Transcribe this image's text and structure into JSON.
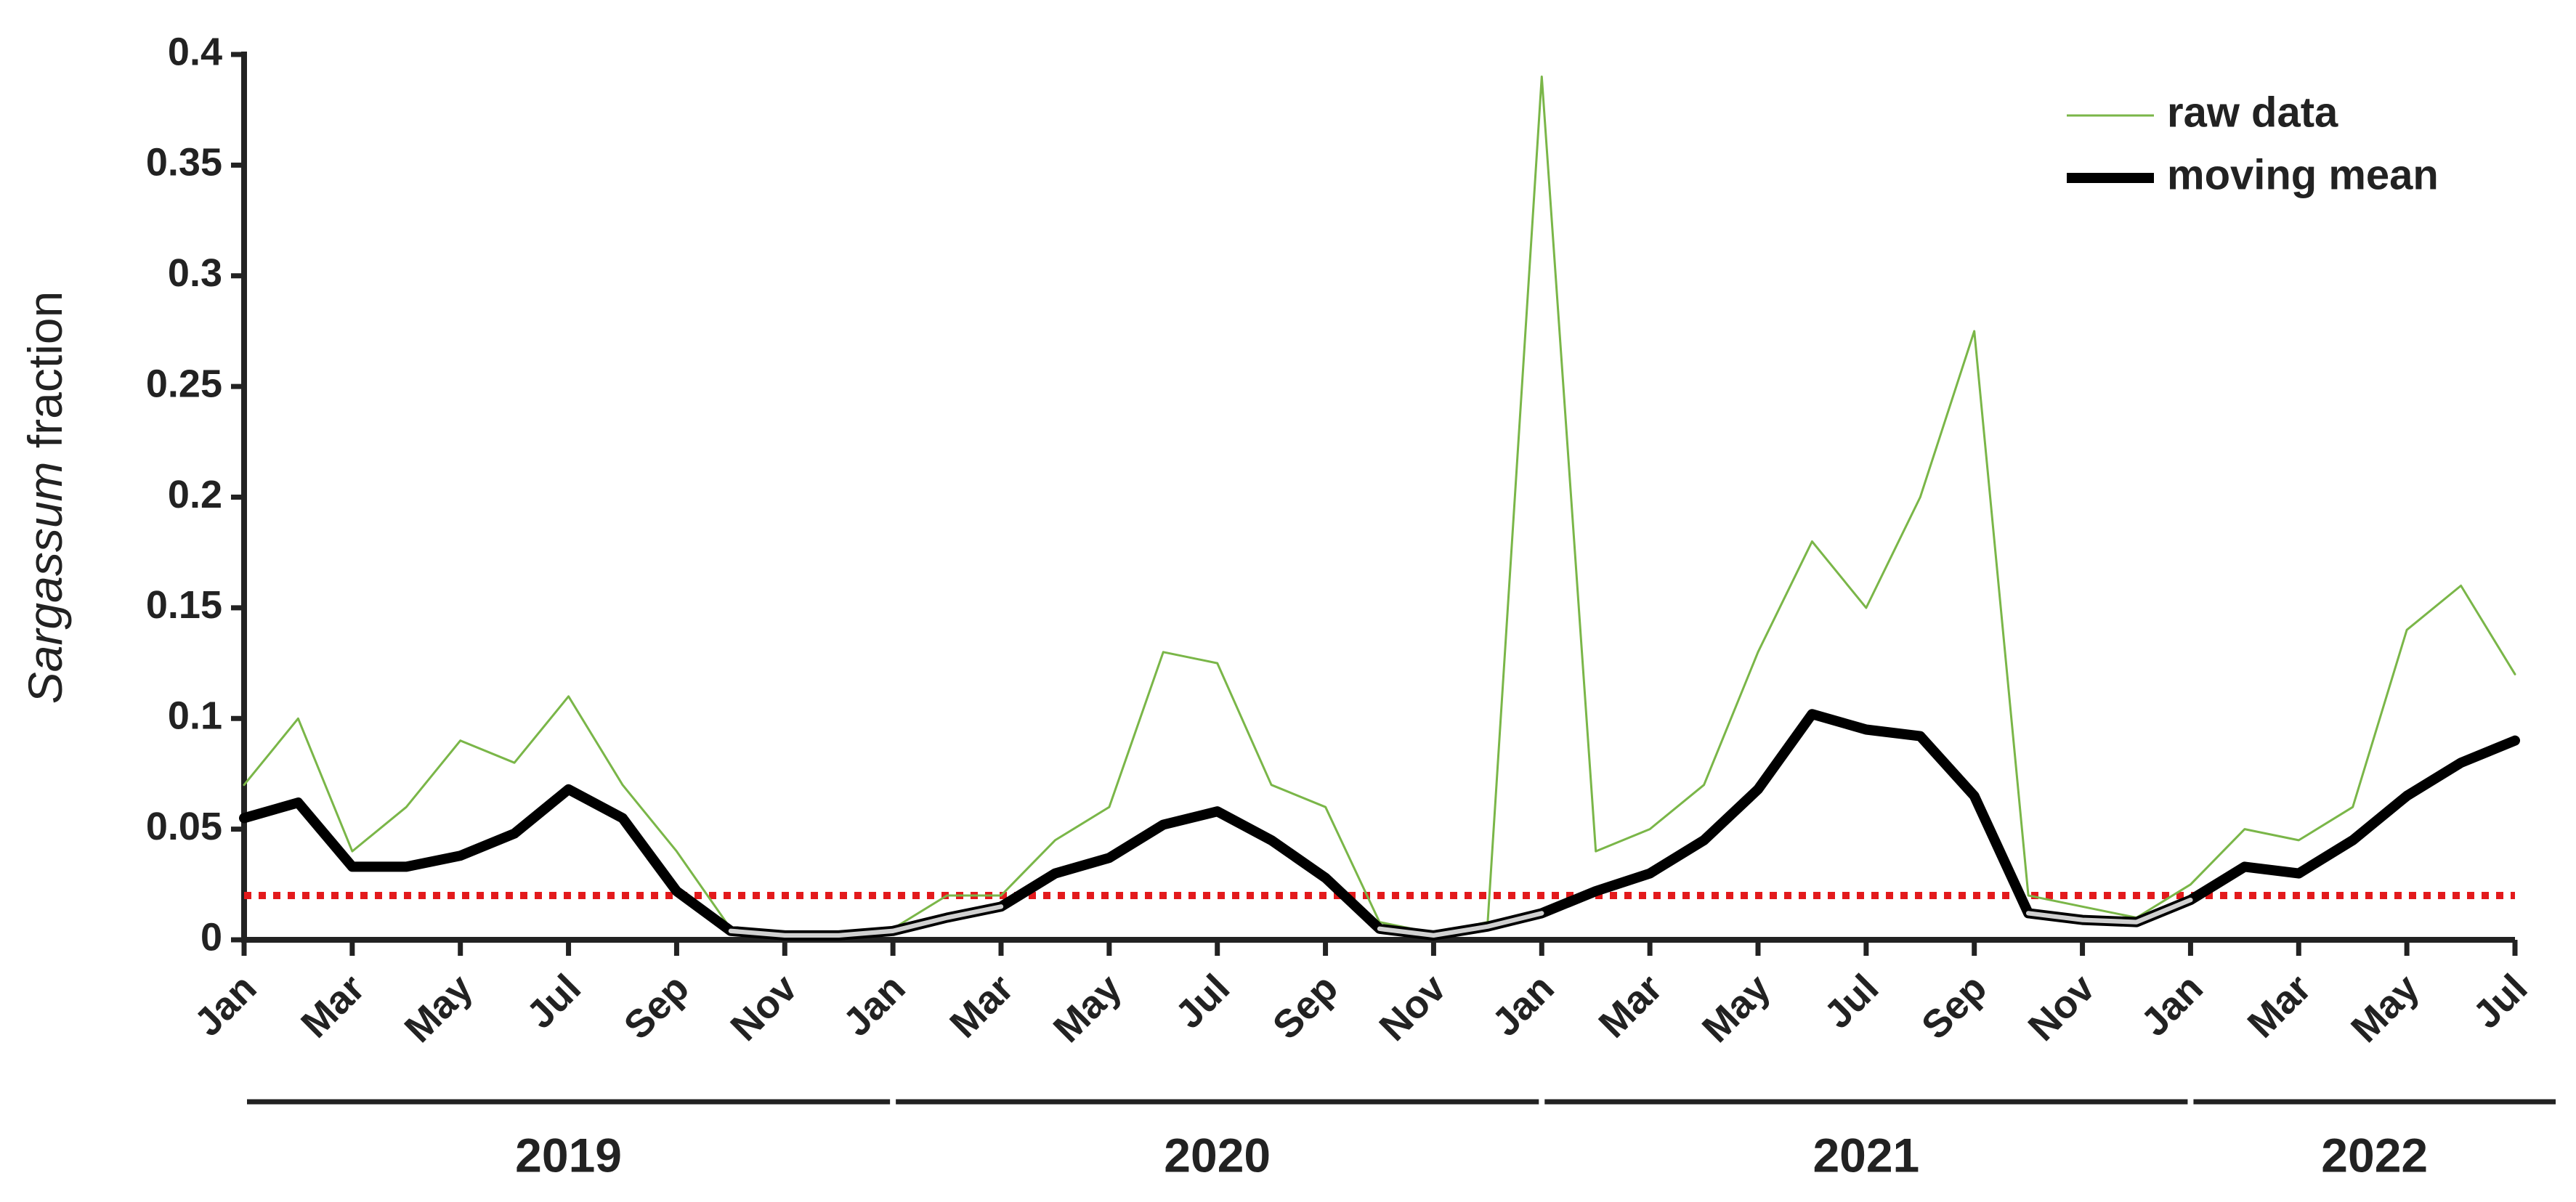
{
  "chart_data": {
    "type": "line",
    "y_label_italic": "Sargassum",
    "y_label": "fraction",
    "x": [
      "2019-01",
      "2019-02",
      "2019-03",
      "2019-04",
      "2019-05",
      "2019-06",
      "2019-07",
      "2019-08",
      "2019-09",
      "2019-10",
      "2019-11",
      "2019-12",
      "2020-01",
      "2020-02",
      "2020-03",
      "2020-04",
      "2020-05",
      "2020-06",
      "2020-07",
      "2020-08",
      "2020-09",
      "2020-10",
      "2020-11",
      "2020-12",
      "2021-01",
      "2021-02",
      "2021-03",
      "2021-04",
      "2021-05",
      "2021-06",
      "2021-07",
      "2021-08",
      "2021-09",
      "2021-10",
      "2021-11",
      "2021-12",
      "2022-01",
      "2022-02",
      "2022-03",
      "2022-04",
      "2022-05",
      "2022-06",
      "2022-07"
    ],
    "series": [
      {
        "name": "raw data",
        "color": "#7ab648",
        "width": 3,
        "values": [
          0.07,
          0.1,
          0.04,
          0.06,
          0.09,
          0.08,
          0.11,
          0.07,
          0.04,
          0.005,
          0.003,
          0.002,
          0.005,
          0.02,
          0.02,
          0.045,
          0.06,
          0.13,
          0.125,
          0.07,
          0.06,
          0.008,
          0.003,
          0.008,
          0.39,
          0.04,
          0.05,
          0.07,
          0.13,
          0.18,
          0.15,
          0.2,
          0.275,
          0.02,
          0.015,
          0.01,
          0.025,
          0.05,
          0.045,
          0.06,
          0.14,
          0.16,
          0.12
        ]
      },
      {
        "name": "moving mean",
        "color": "#000000",
        "width": 14,
        "below_color": "#d0d0d0",
        "values": [
          0.055,
          0.062,
          0.033,
          0.033,
          0.038,
          0.048,
          0.068,
          0.055,
          0.022,
          0.004,
          0.002,
          0.002,
          0.004,
          0.01,
          0.015,
          0.03,
          0.037,
          0.052,
          0.058,
          0.045,
          0.028,
          0.005,
          0.002,
          0.006,
          0.012,
          0.022,
          0.03,
          0.045,
          0.068,
          0.102,
          0.095,
          0.092,
          0.065,
          0.012,
          0.009,
          0.008,
          0.018,
          0.033,
          0.03,
          0.045,
          0.065,
          0.08,
          0.09
        ]
      }
    ],
    "threshold": 0.02,
    "threshold_color": "#e31a1c",
    "xlim": [
      "2019-01",
      "2022-07"
    ],
    "xticks": [
      {
        "value": "2019-01",
        "label": "Jan"
      },
      {
        "value": "2019-03",
        "label": "Mar"
      },
      {
        "value": "2019-05",
        "label": "May"
      },
      {
        "value": "2019-07",
        "label": "Jul"
      },
      {
        "value": "2019-09",
        "label": "Sep"
      },
      {
        "value": "2019-11",
        "label": "Nov"
      },
      {
        "value": "2020-01",
        "label": "Jan"
      },
      {
        "value": "2020-03",
        "label": "Mar"
      },
      {
        "value": "2020-05",
        "label": "May"
      },
      {
        "value": "2020-07",
        "label": "Jul"
      },
      {
        "value": "2020-09",
        "label": "Sep"
      },
      {
        "value": "2020-11",
        "label": "Nov"
      },
      {
        "value": "2021-01",
        "label": "Jan"
      },
      {
        "value": "2021-03",
        "label": "Mar"
      },
      {
        "value": "2021-05",
        "label": "May"
      },
      {
        "value": "2021-07",
        "label": "Jul"
      },
      {
        "value": "2021-09",
        "label": "Sep"
      },
      {
        "value": "2021-11",
        "label": "Nov"
      },
      {
        "value": "2022-01",
        "label": "Jan"
      },
      {
        "value": "2022-03",
        "label": "Mar"
      },
      {
        "value": "2022-05",
        "label": "May"
      },
      {
        "value": "2022-07",
        "label": "Jul"
      }
    ],
    "years": [
      "2019",
      "2020",
      "2021",
      "2022"
    ],
    "ylim": [
      0,
      0.4
    ],
    "yticks": [
      0,
      0.05,
      0.1,
      0.15,
      0.2,
      0.25,
      0.3,
      0.35,
      0.4
    ],
    "legend": "top-right"
  }
}
